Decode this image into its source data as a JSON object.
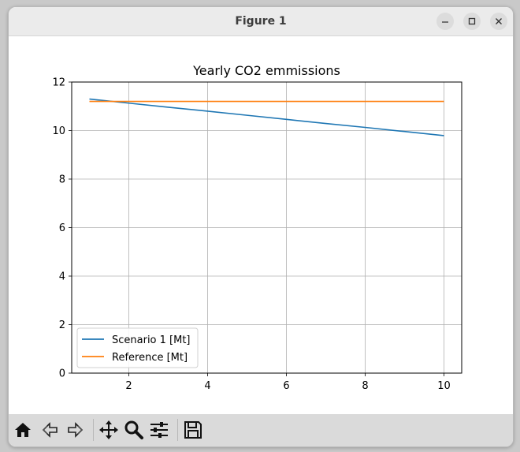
{
  "window": {
    "title": "Figure 1",
    "controls": {
      "minimize": "minimize-icon",
      "maximize": "maximize-icon",
      "close": "close-icon"
    }
  },
  "toolbar": {
    "icons": [
      "home-icon",
      "back-arrow-icon",
      "forward-arrow-icon",
      "pan-icon",
      "zoom-icon",
      "configure-subplots-icon",
      "save-icon"
    ]
  },
  "chart_data": {
    "type": "line",
    "title": "Yearly CO2 emmissions",
    "xlabel": "",
    "ylabel": "",
    "xlim": [
      0.55,
      10.45
    ],
    "ylim": [
      0,
      12
    ],
    "xticks": [
      "2",
      "4",
      "6",
      "8",
      "10"
    ],
    "yticks": [
      "0",
      "2",
      "4",
      "6",
      "8",
      "10",
      "12"
    ],
    "grid": true,
    "legend_position": "lower-left",
    "x": [
      1,
      2,
      3,
      4,
      5,
      6,
      7,
      8,
      9,
      10
    ],
    "series": [
      {
        "name": "Scenario 1 [Mt]",
        "color": "#1f77b4",
        "values": [
          11.3,
          11.13,
          10.96,
          10.8,
          10.63,
          10.46,
          10.29,
          10.13,
          9.96,
          9.79
        ]
      },
      {
        "name": "Reference [Mt]",
        "color": "#ff7f0e",
        "values": [
          11.2,
          11.2,
          11.2,
          11.2,
          11.2,
          11.2,
          11.2,
          11.2,
          11.2,
          11.2
        ]
      }
    ]
  }
}
